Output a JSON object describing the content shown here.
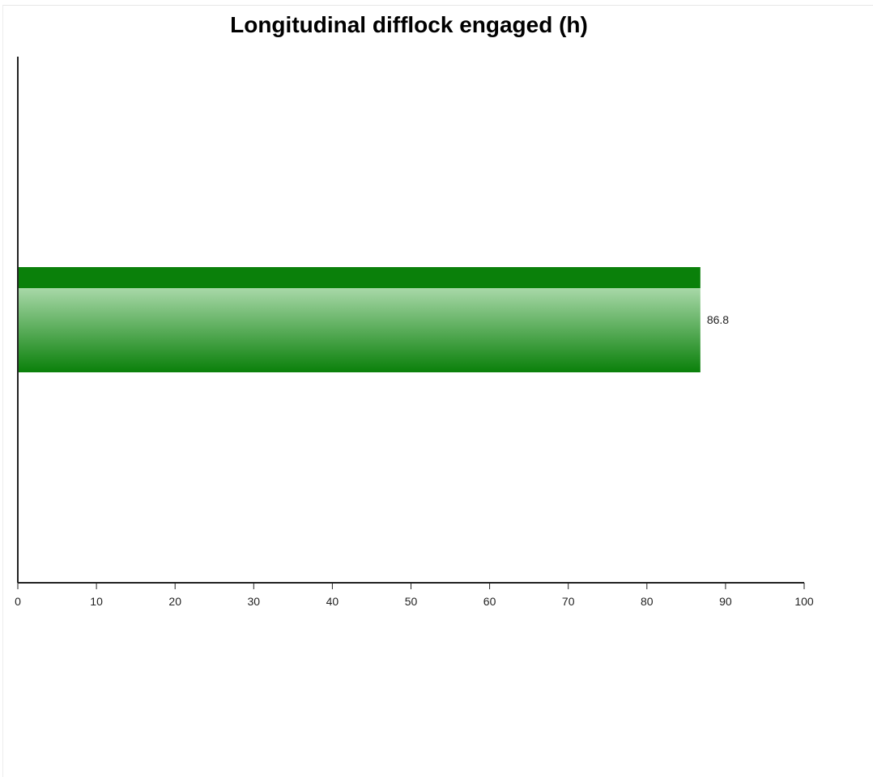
{
  "chart_data": {
    "type": "bar",
    "orientation": "horizontal",
    "title": "Longitudinal difflock engaged (h)",
    "xlabel": "",
    "ylabel": "",
    "categories": [
      ""
    ],
    "values": [
      86.8
    ],
    "value_labels": [
      "86.8"
    ],
    "xlim": [
      0,
      100
    ],
    "x_ticks": [
      0,
      10,
      20,
      30,
      40,
      50,
      60,
      70,
      80,
      90,
      100
    ],
    "x_tick_labels": [
      "0",
      "10",
      "20",
      "30",
      "40",
      "50",
      "60",
      "70",
      "80",
      "90",
      "100"
    ],
    "grid": false,
    "legend": "none",
    "colors": {
      "bar_dark": "#0a800a",
      "bar_light": "#a8d8a8",
      "axis": "#222222"
    }
  }
}
